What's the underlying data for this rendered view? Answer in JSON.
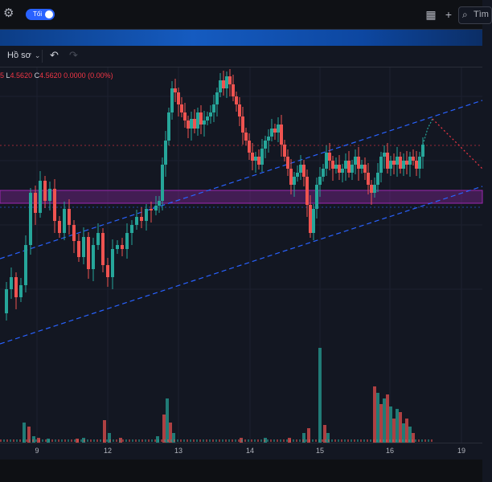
{
  "topbar": {
    "theme_toggle_label": "Tối",
    "search_placeholder": "Tìm"
  },
  "subbar": {
    "profile_label": "Hồ sơ"
  },
  "ohlc": {
    "h_value": "5",
    "l_key": "L",
    "l_value": "4.5620",
    "c_key": "C",
    "c_value": "4.5620",
    "change": "0.0000 (0.00%)"
  },
  "chart_data": {
    "type": "candlestick",
    "x_tick_labels": [
      "9",
      "12",
      "13",
      "14",
      "15",
      "16",
      "19"
    ],
    "zone_color": "#9c27b0",
    "up_color": "#26a69a",
    "down_color": "#ef5350",
    "trendline_color": "#2962ff",
    "projection_color": "#f23645"
  },
  "colors": {
    "background": "#131722",
    "accent": "#2962ff"
  }
}
